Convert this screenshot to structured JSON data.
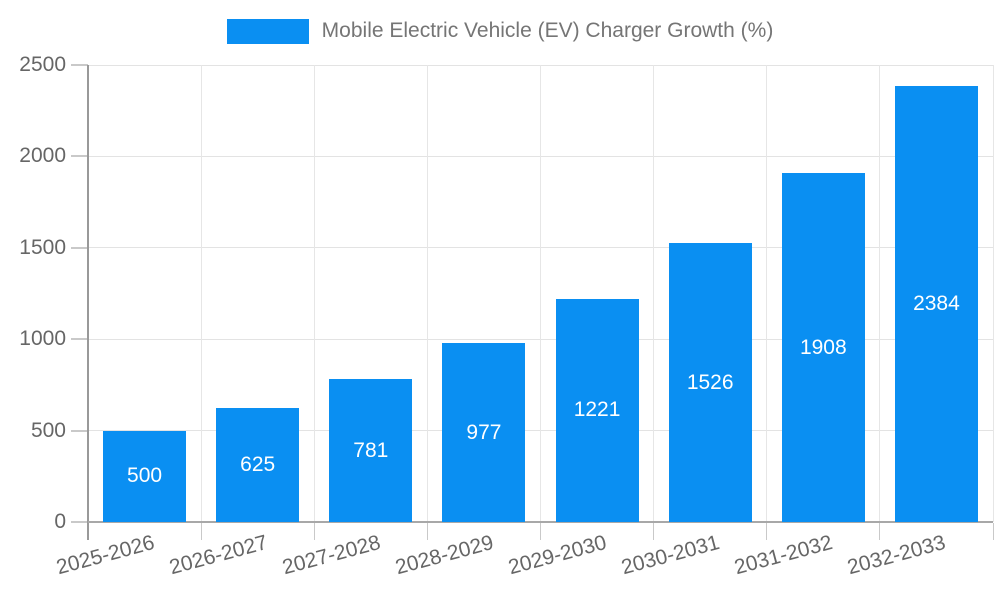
{
  "chart_data": {
    "type": "bar",
    "title": "Mobile Electric Vehicle (EV) Charger Growth (%)",
    "categories": [
      "2025-2026",
      "2026-2027",
      "2027-2028",
      "2028-2029",
      "2029-2030",
      "2030-2031",
      "2031-2032",
      "2032-2033"
    ],
    "values": [
      500,
      625,
      781,
      977,
      1221,
      1526,
      1908,
      2384
    ],
    "series": [
      {
        "name": "Mobile Electric Vehicle (EV) Charger Growth (%)",
        "values": [
          500,
          625,
          781,
          977,
          1221,
          1526,
          1908,
          2384
        ]
      }
    ],
    "xlabel": "",
    "ylabel": "",
    "ylim": [
      0,
      2500
    ],
    "yticks": [
      0,
      500,
      1000,
      1500,
      2000,
      2500
    ],
    "grid": true,
    "legend_position": "top-center",
    "bar_label_position": "center",
    "colors": {
      "bar": "#0a8ff2",
      "bar_label_text": "#ffffff",
      "legend_text": "#757575",
      "axis_text": "#666666",
      "gridline": "#e3e3e3",
      "axis_line": "#9e9e9e",
      "tick": "#c9c9c9",
      "background": "#ffffff"
    }
  }
}
